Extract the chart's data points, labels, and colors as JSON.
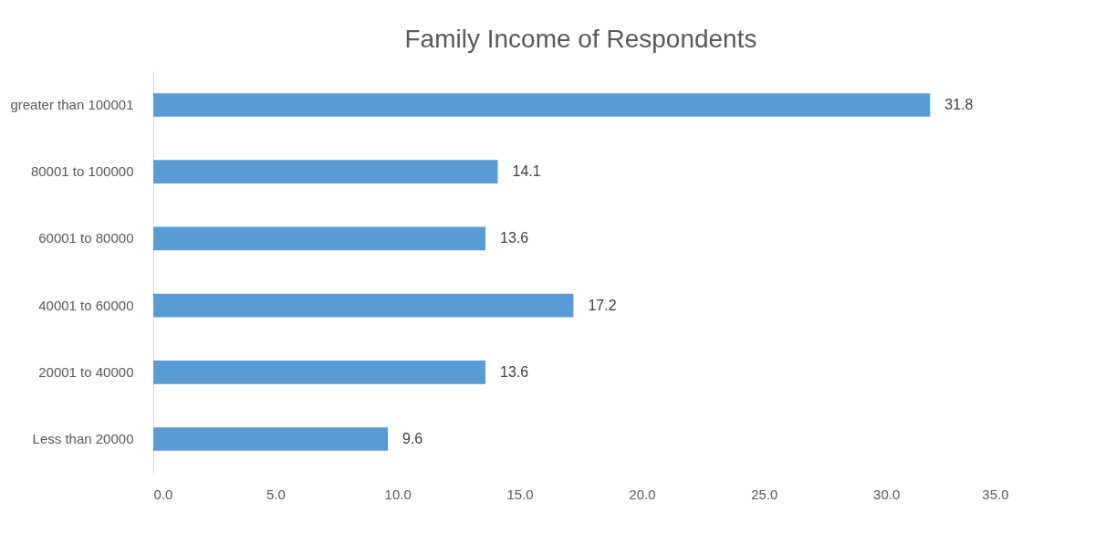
{
  "chart_data": {
    "type": "bar",
    "orientation": "horizontal",
    "title": "Family Income of Respondents",
    "categories": [
      "greater than 100001",
      "80001 to 100000",
      "60001 to 80000",
      "40001 to 60000",
      "20001 to 40000",
      "Less than 20000"
    ],
    "values": [
      31.8,
      14.1,
      13.6,
      17.2,
      13.6,
      9.6
    ],
    "color": "#5b9bd5",
    "xlim": [
      0,
      35
    ],
    "xticks": [
      {
        "value": 0,
        "label": "0.0"
      },
      {
        "value": 5,
        "label": "5.0"
      },
      {
        "value": 10,
        "label": "10.0"
      },
      {
        "value": 15,
        "label": "15.0"
      },
      {
        "value": 20,
        "label": "20.0"
      },
      {
        "value": 25,
        "label": "25.0"
      },
      {
        "value": 30,
        "label": "30.0"
      },
      {
        "value": 35,
        "label": "35.0"
      }
    ],
    "data_labels": true,
    "grid": false
  }
}
